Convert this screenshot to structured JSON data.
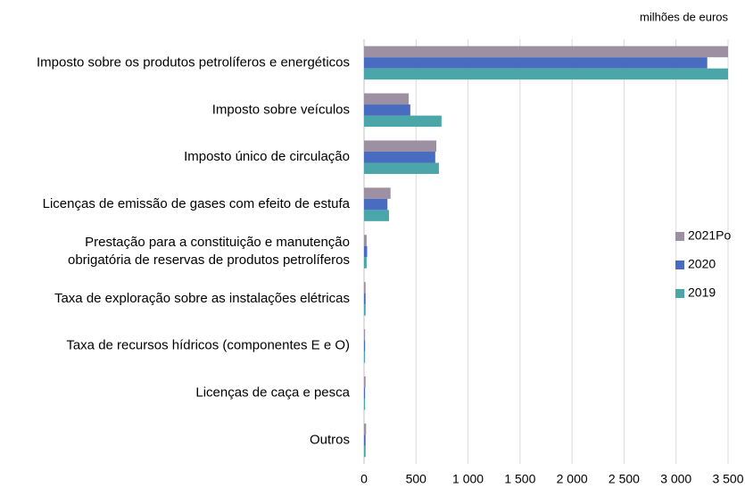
{
  "chart_data": {
    "type": "bar",
    "orientation": "horizontal",
    "unit_label": "milhões de euros",
    "categories": [
      "Imposto sobre os produtos petrolíferos e energéticos",
      "Imposto sobre veículos",
      "Imposto único de circulação",
      "Licenças de emissão de gases com efeito de estufa",
      "Prestação para a constituição e manutenção\nobrigatória de reservas de produtos petrolíferos",
      "Taxa de exploração sobre as instalações elétricas",
      "Taxa de recursos hídricos (componentes E e O)",
      "Licenças de caça e pesca",
      "Outros"
    ],
    "series": [
      {
        "name": "2021Po",
        "color": "#9c90a2",
        "values": [
          3500,
          430,
          695,
          255,
          25,
          15,
          10,
          15,
          20
        ]
      },
      {
        "name": "2020",
        "color": "#4a6cc0",
        "values": [
          3300,
          445,
          685,
          225,
          30,
          15,
          10,
          10,
          15
        ]
      },
      {
        "name": "2019",
        "color": "#4ba6aa",
        "values": [
          3500,
          745,
          720,
          240,
          25,
          15,
          10,
          10,
          15
        ]
      }
    ],
    "xlim": [
      0,
      3500
    ],
    "xticks": [
      0,
      500,
      {
        "value": 1000,
        "label": "1 000"
      },
      {
        "value": 1500,
        "label": "1 500"
      },
      {
        "value": 2000,
        "label": "2 000"
      },
      {
        "value": 2500,
        "label": "2 500"
      },
      {
        "value": 3000,
        "label": "3 000"
      },
      {
        "value": 3500,
        "label": "3 500"
      }
    ],
    "grid": true,
    "legend": "right"
  }
}
